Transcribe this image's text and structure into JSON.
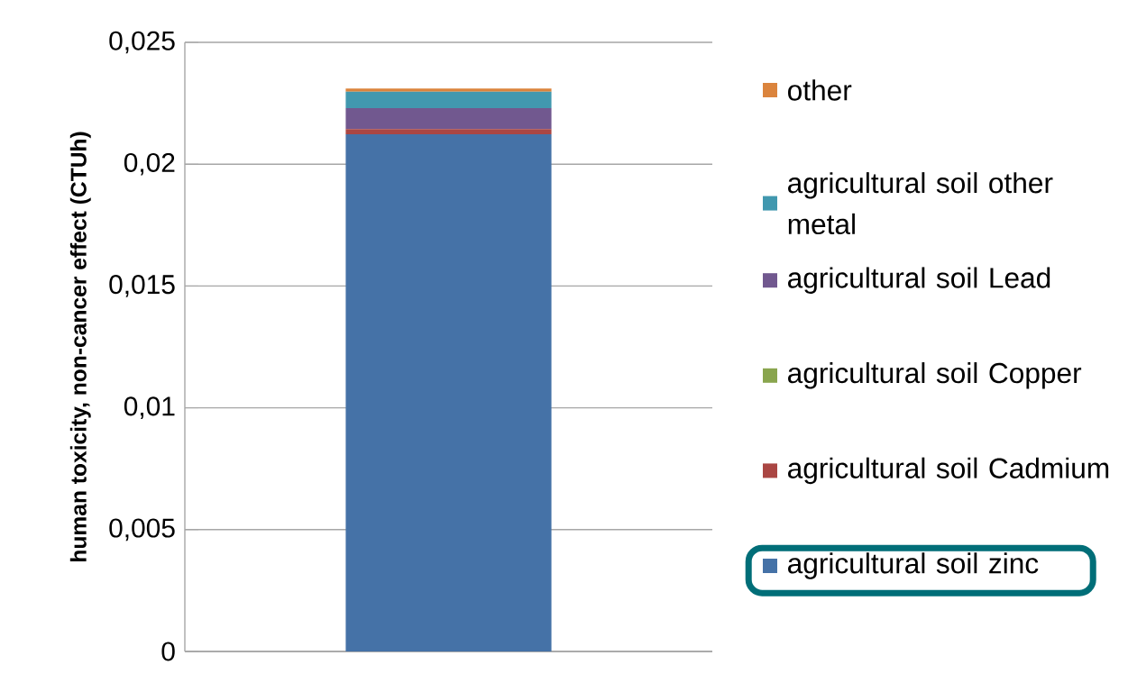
{
  "chart_data": {
    "type": "bar",
    "stacked": true,
    "ylabel": "human toxicity, non-cancer effect (CTUh)",
    "categories": [
      null
    ],
    "series": [
      {
        "name": "agricultural soil zinc",
        "color": "#4572a7",
        "values": [
          0.02123
        ]
      },
      {
        "name": "agricultural soil Cadmium",
        "color": "#aa4643",
        "values": [
          0.00021
        ]
      },
      {
        "name": "agricultural soil Copper",
        "color": "#89a54e",
        "values": [
          0
        ]
      },
      {
        "name": "agricultural soil Lead",
        "color": "#71588f",
        "values": [
          0.00086
        ]
      },
      {
        "name": "agricultural soil other metal",
        "color": "#4198af",
        "values": [
          0.00068
        ]
      },
      {
        "name": "other",
        "color": "#db843d",
        "values": [
          0.00013
        ]
      }
    ],
    "ylim": [
      0,
      0.025
    ],
    "yticks": [
      0,
      {
        "value": 0.005,
        "label": "0,005"
      },
      {
        "value": 0.01,
        "label": "0,01"
      },
      {
        "value": 0.015,
        "label": "0,015"
      },
      {
        "value": 0.02,
        "label": "0,02"
      },
      {
        "value": 0.025,
        "label": "0,025"
      }
    ],
    "grid": "y",
    "legend": "right",
    "tick_labels": "y"
  }
}
